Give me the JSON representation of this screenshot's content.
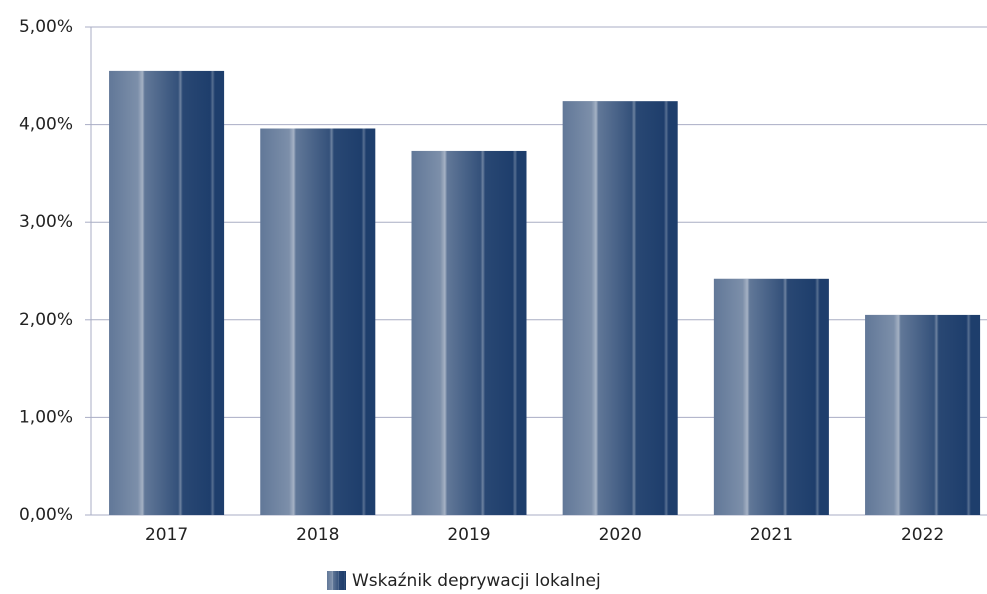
{
  "chart_data": {
    "type": "bar",
    "categories": [
      "2017",
      "2018",
      "2019",
      "2020",
      "2021",
      "2022"
    ],
    "series": [
      {
        "name": "Wskaźnik deprywacji lokalnej",
        "color": "#1e3e6c",
        "values": [
          4.55,
          3.96,
          3.73,
          4.24,
          2.42,
          2.05
        ]
      }
    ],
    "ylim": [
      0,
      5
    ],
    "yticks": [
      {
        "value": 0,
        "label": "0,00%"
      },
      {
        "value": 1,
        "label": "1,00%"
      },
      {
        "value": 2,
        "label": "2,00%"
      },
      {
        "value": 3,
        "label": "3,00%"
      },
      {
        "value": 4,
        "label": "4,00%"
      },
      {
        "value": 5,
        "label": "5,00%"
      }
    ],
    "grid": true,
    "legend": "bottom"
  }
}
